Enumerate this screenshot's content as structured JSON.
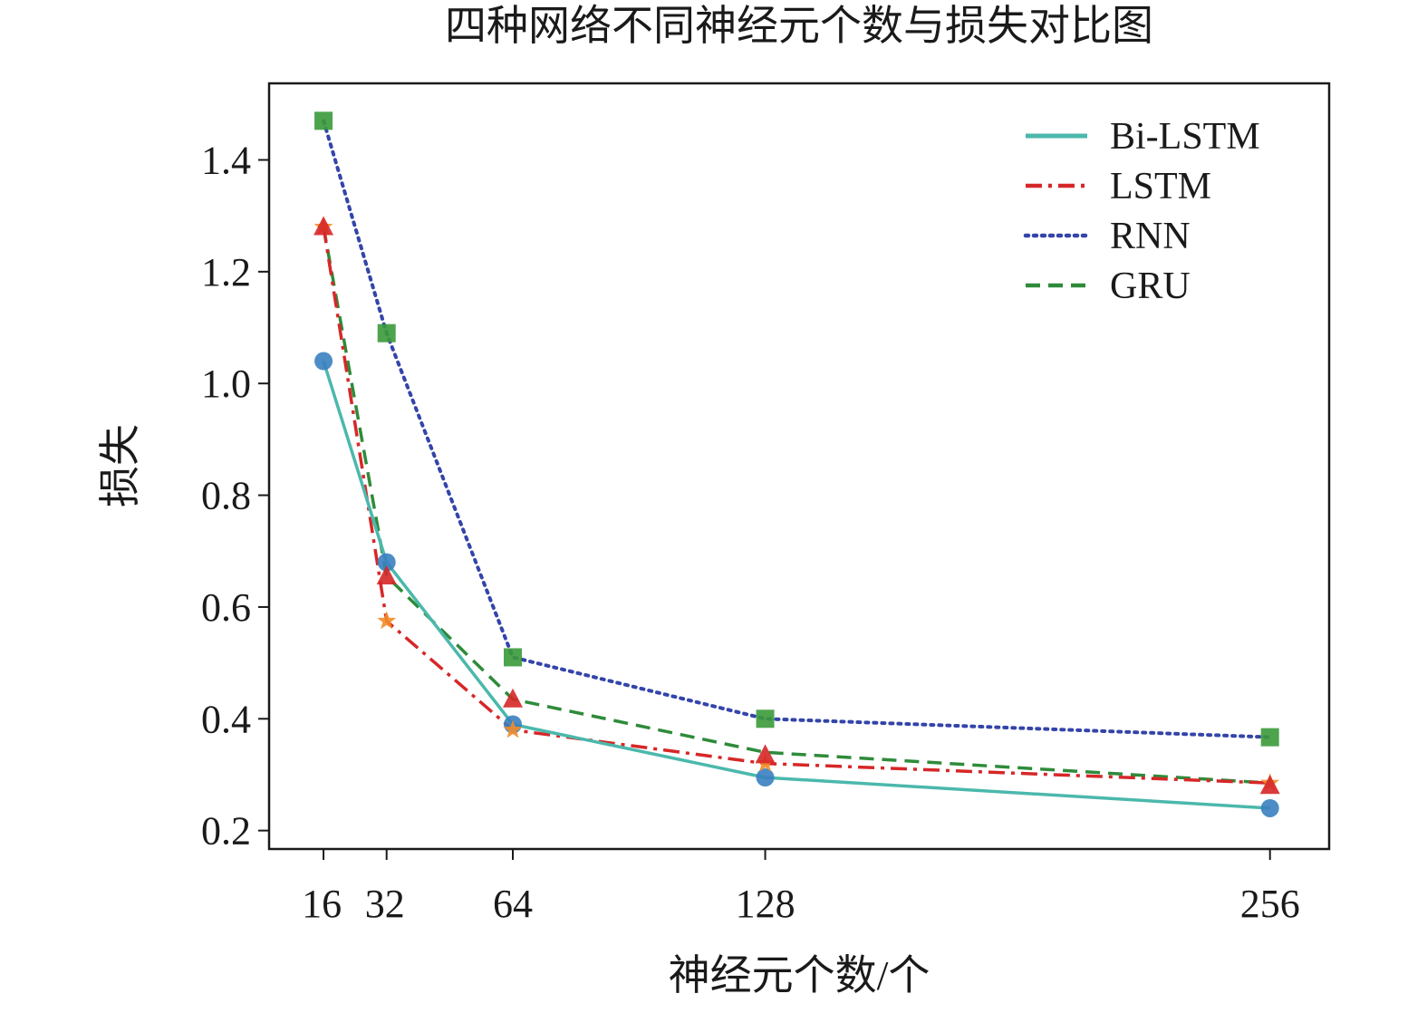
{
  "chart_data": {
    "type": "line",
    "title": "四种网络不同神经元个数与损失对比图",
    "xlabel": "神经元个数/个",
    "ylabel": "损失",
    "x": [
      16,
      32,
      64,
      128,
      256
    ],
    "x_tick_labels": [
      "16",
      "32",
      "64",
      "128",
      "256"
    ],
    "y_ticks": [
      0.2,
      0.4,
      0.6,
      0.8,
      1.0,
      1.2,
      1.4
    ],
    "y_tick_labels": [
      "0.2",
      "0.4",
      "0.6",
      "0.8",
      "1.0",
      "1.2",
      "1.4"
    ],
    "xlim": [
      2.2,
      271
    ],
    "ylim": [
      0.167,
      1.537
    ],
    "grid": false,
    "legend_position": "top-right",
    "series": [
      {
        "name": "Bi-LSTM",
        "values": [
          1.04,
          0.68,
          0.39,
          0.295,
          0.24
        ],
        "color": "#4bb8ac",
        "style": "solid",
        "marker": "circle",
        "marker_color": "#3a7fc0"
      },
      {
        "name": "LSTM",
        "values": [
          1.28,
          0.575,
          0.38,
          0.32,
          0.285
        ],
        "color": "#d62728",
        "style": "dashdot",
        "marker": "star",
        "marker_color": "#f28c28",
        "extra_markers": [
          {
            "x": 16,
            "y": 1.28,
            "shape": "triangle"
          },
          {
            "x": 32,
            "y": 0.655,
            "shape": "triangle"
          },
          {
            "x": 64,
            "y": 0.435,
            "shape": "triangle"
          },
          {
            "x": 128,
            "y": 0.335,
            "shape": "triangle"
          },
          {
            "x": 256,
            "y": 0.28,
            "shape": "triangle"
          }
        ],
        "extra_marker_color": "#d62728"
      },
      {
        "name": "RNN",
        "values": [
          1.47,
          1.09,
          0.51,
          0.4,
          0.367
        ],
        "color": "#3344aa",
        "style": "dotted",
        "marker": "square",
        "marker_color": "#3a9a3a"
      },
      {
        "name": "GRU",
        "values": [
          1.28,
          0.655,
          0.435,
          0.34,
          0.285
        ],
        "color": "#2e8b3a",
        "style": "dashed",
        "marker": "none",
        "marker_color": "#2e8b3a"
      }
    ]
  }
}
